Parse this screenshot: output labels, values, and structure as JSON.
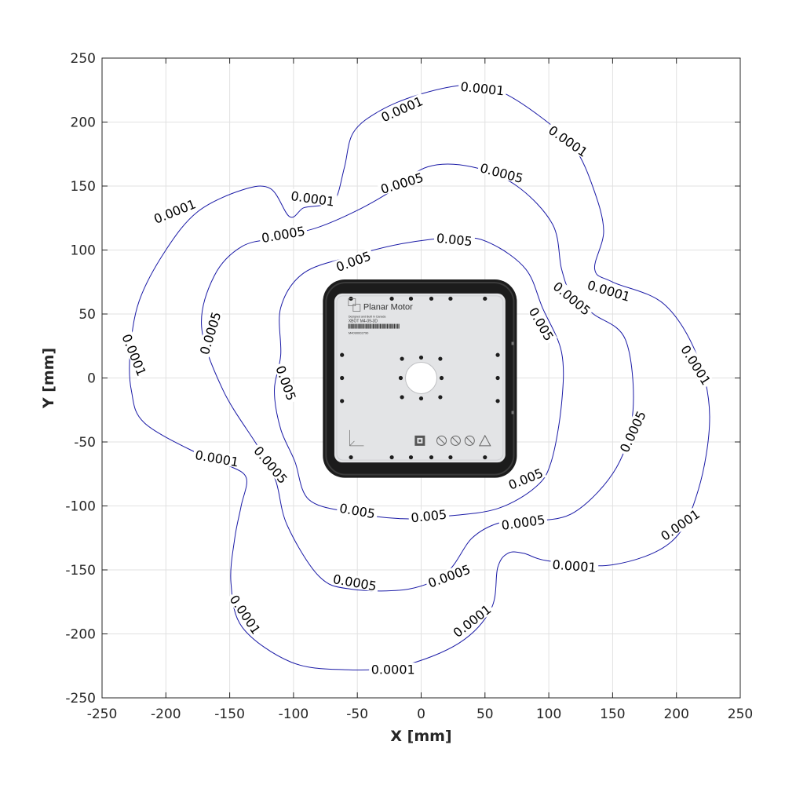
{
  "chart_data": {
    "type": "contour",
    "xlabel": "X [mm]",
    "ylabel": "Y [mm]",
    "xlim": [
      -250,
      250
    ],
    "ylim": [
      -250,
      250
    ],
    "xticks": [
      -250,
      -200,
      -150,
      -100,
      -50,
      0,
      50,
      100,
      150,
      200,
      250
    ],
    "yticks": [
      -250,
      -200,
      -150,
      -100,
      -50,
      0,
      50,
      100,
      150,
      200,
      250
    ],
    "grid": true,
    "line_color": "#1a1aa6",
    "contours": [
      {
        "level": "0.0001",
        "points": [
          [
            -103,
            126
          ],
          [
            -92,
            133
          ],
          [
            -78,
            135
          ],
          [
            -67,
            140
          ],
          [
            -60,
            165
          ],
          [
            -53,
            192
          ],
          [
            -32,
            209
          ],
          [
            0,
            222
          ],
          [
            36,
            229
          ],
          [
            62,
            224
          ],
          [
            95,
            203
          ],
          [
            120,
            180
          ],
          [
            135,
            148
          ],
          [
            143,
            115
          ],
          [
            136,
            85
          ],
          [
            150,
            75
          ],
          [
            190,
            58
          ],
          [
            216,
            18
          ],
          [
            226,
            -30
          ],
          [
            217,
            -88
          ],
          [
            196,
            -128
          ],
          [
            150,
            -146
          ],
          [
            100,
            -143
          ],
          [
            80,
            -137
          ],
          [
            68,
            -137
          ],
          [
            60,
            -148
          ],
          [
            55,
            -180
          ],
          [
            30,
            -207
          ],
          [
            -15,
            -225
          ],
          [
            -60,
            -228
          ],
          [
            -102,
            -222
          ],
          [
            -140,
            -195
          ],
          [
            -149,
            -160
          ],
          [
            -146,
            -125
          ],
          [
            -141,
            -100
          ],
          [
            -137,
            -78
          ],
          [
            -152,
            -68
          ],
          [
            -175,
            -59
          ],
          [
            -217,
            -35
          ],
          [
            -227,
            -10
          ],
          [
            -228,
            20
          ],
          [
            -221,
            60
          ],
          [
            -200,
            100
          ],
          [
            -175,
            130
          ],
          [
            -140,
            147
          ],
          [
            -118,
            148
          ],
          [
            -103,
            126
          ]
        ],
        "labels": [
          {
            "x": -85,
            "y": 140,
            "angle": 8
          },
          {
            "x": -15,
            "y": 210,
            "angle": -24
          },
          {
            "x": 48,
            "y": 226,
            "angle": 6
          },
          {
            "x": 115,
            "y": 185,
            "angle": 35
          },
          {
            "x": 147,
            "y": 68,
            "angle": 17
          },
          {
            "x": 215,
            "y": 10,
            "angle": 58
          },
          {
            "x": 203,
            "y": -115,
            "angle": -35
          },
          {
            "x": 120,
            "y": -147,
            "angle": 4
          },
          {
            "x": 40,
            "y": -190,
            "angle": -38
          },
          {
            "x": -22,
            "y": -228,
            "angle": 0
          },
          {
            "x": -138,
            "y": -185,
            "angle": 56
          },
          {
            "x": -160,
            "y": -63,
            "angle": 10
          },
          {
            "x": -225,
            "y": 18,
            "angle": 68
          },
          {
            "x": -193,
            "y": 130,
            "angle": -22
          }
        ]
      },
      {
        "level": "0.0005",
        "points": [
          [
            -110,
            110
          ],
          [
            -80,
            118
          ],
          [
            -52,
            130
          ],
          [
            -25,
            145
          ],
          [
            5,
            165
          ],
          [
            40,
            165
          ],
          [
            75,
            150
          ],
          [
            103,
            120
          ],
          [
            110,
            85
          ],
          [
            118,
            65
          ],
          [
            135,
            50
          ],
          [
            160,
            30
          ],
          [
            166,
            -25
          ],
          [
            153,
            -70
          ],
          [
            120,
            -105
          ],
          [
            85,
            -112
          ],
          [
            62,
            -113
          ],
          [
            40,
            -125
          ],
          [
            20,
            -152
          ],
          [
            -10,
            -165
          ],
          [
            -55,
            -165
          ],
          [
            -80,
            -155
          ],
          [
            -105,
            -115
          ],
          [
            -114,
            -80
          ],
          [
            -127,
            -55
          ],
          [
            -155,
            -10
          ],
          [
            -172,
            40
          ],
          [
            -162,
            80
          ],
          [
            -140,
            103
          ],
          [
            -110,
            110
          ]
        ],
        "labels": [
          {
            "x": -108,
            "y": 112,
            "angle": -10
          },
          {
            "x": -15,
            "y": 152,
            "angle": -17
          },
          {
            "x": 63,
            "y": 160,
            "angle": 15
          },
          {
            "x": 118,
            "y": 62,
            "angle": 40
          },
          {
            "x": 166,
            "y": -42,
            "angle": -65
          },
          {
            "x": 80,
            "y": -113,
            "angle": -8
          },
          {
            "x": 22,
            "y": -155,
            "angle": -20
          },
          {
            "x": -52,
            "y": -160,
            "angle": 10
          },
          {
            "x": -118,
            "y": -68,
            "angle": 50
          },
          {
            "x": -165,
            "y": 35,
            "angle": -73
          }
        ]
      },
      {
        "level": "0.005",
        "points": [
          [
            -110,
            18
          ],
          [
            -110,
            55
          ],
          [
            -92,
            82
          ],
          [
            -55,
            95
          ],
          [
            -15,
            105
          ],
          [
            30,
            110
          ],
          [
            55,
            105
          ],
          [
            82,
            85
          ],
          [
            95,
            55
          ],
          [
            110,
            20
          ],
          [
            110,
            -20
          ],
          [
            102,
            -65
          ],
          [
            90,
            -85
          ],
          [
            60,
            -102
          ],
          [
            20,
            -108
          ],
          [
            -15,
            -110
          ],
          [
            -55,
            -105
          ],
          [
            -88,
            -95
          ],
          [
            -99,
            -65
          ],
          [
            -110,
            -40
          ],
          [
            -115,
            -10
          ],
          [
            -110,
            18
          ]
        ],
        "labels": [
          {
            "x": -53,
            "y": 91,
            "angle": -20
          },
          {
            "x": 26,
            "y": 108,
            "angle": 6
          },
          {
            "x": 94,
            "y": 42,
            "angle": 60
          },
          {
            "x": 82,
            "y": -79,
            "angle": -22
          },
          {
            "x": 6,
            "y": -108,
            "angle": -6
          },
          {
            "x": -50,
            "y": -104,
            "angle": 10
          },
          {
            "x": -106,
            "y": -4,
            "angle": 70
          }
        ]
      }
    ]
  },
  "device": {
    "brand": "Planar Motor",
    "subtitle": "Designed and Built in Canada",
    "model": "XBOT M4-09-3D",
    "serial": "M4090002790"
  }
}
